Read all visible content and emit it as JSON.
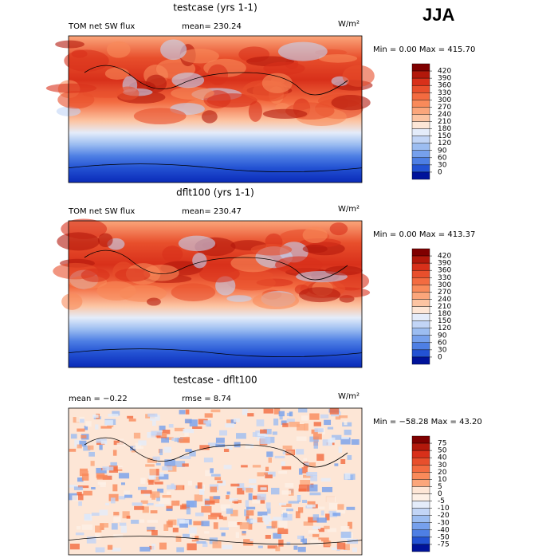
{
  "header": "JJA",
  "panels": [
    {
      "title": "testcase (yrs 1-1)",
      "left_label": "TOM net SW flux",
      "stat_label": "mean= 230.24",
      "unit": "W/m²",
      "range_label": "Min =   0.00 Max = 415.70",
      "levels": [
        420,
        390,
        360,
        330,
        300,
        270,
        240,
        210,
        180,
        150,
        120,
        90,
        60,
        30,
        0
      ],
      "colors": [
        "#7f0000",
        "#b2180b",
        "#d8301a",
        "#e84f2c",
        "#f36b40",
        "#f98a5a",
        "#fba67b",
        "#fcc4a2",
        "#fde6d6",
        "#e4ecfa",
        "#c2d5f6",
        "#9cbdf1",
        "#76a0ec",
        "#4e7fe4",
        "#2352d3",
        "#00129a"
      ]
    },
    {
      "title": "dflt100 (yrs 1-1)",
      "left_label": "TOM net SW flux",
      "stat_label": "mean= 230.47",
      "unit": "W/m²",
      "range_label": "Min =   0.00 Max = 413.37",
      "levels": [
        420,
        390,
        360,
        330,
        300,
        270,
        240,
        210,
        180,
        150,
        120,
        90,
        60,
        30,
        0
      ],
      "colors": [
        "#7f0000",
        "#b2180b",
        "#d8301a",
        "#e84f2c",
        "#f36b40",
        "#f98a5a",
        "#fba67b",
        "#fcc4a2",
        "#fde6d6",
        "#e4ecfa",
        "#c2d5f6",
        "#9cbdf1",
        "#76a0ec",
        "#4e7fe4",
        "#2352d3",
        "#00129a"
      ]
    },
    {
      "title": "testcase - dflt100",
      "left_label": "mean =  −0.22",
      "stat_label": "rmse =   8.74",
      "unit": "W/m²",
      "range_label": "Min = −58.28 Max =  43.20",
      "levels": [
        75,
        50,
        40,
        30,
        20,
        10,
        5,
        0,
        -5,
        -10,
        -20,
        -30,
        -40,
        -50,
        -75
      ],
      "colors": [
        "#7f0000",
        "#b2180b",
        "#d8301a",
        "#e84f2c",
        "#f36b40",
        "#f98a5a",
        "#fba67b",
        "#fde6d6",
        "#fdf0e6",
        "#e4ecfa",
        "#c2d5f6",
        "#9cbdf1",
        "#76a0ec",
        "#4e7fe4",
        "#2352d3",
        "#00129a"
      ]
    }
  ]
}
